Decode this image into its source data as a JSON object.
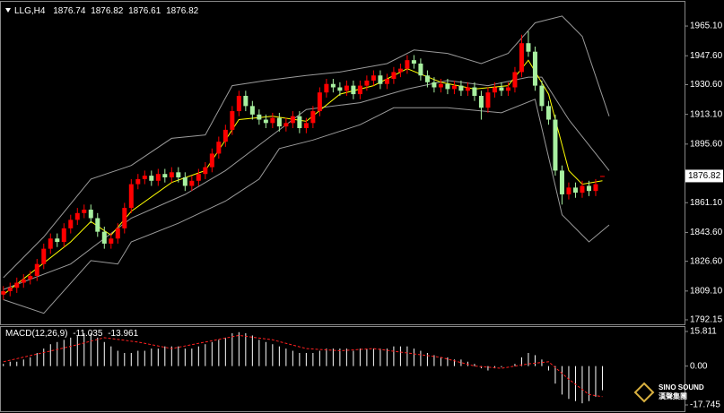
{
  "chart_data": [
    {
      "type": "candlestick",
      "title": "LLG,H4",
      "open": [
        1807,
        1809,
        1811,
        1814,
        1816,
        1818,
        1825,
        1834,
        1840,
        1838,
        1846,
        1851,
        1855,
        1857,
        1852,
        1844,
        1837,
        1840,
        1846,
        1858,
        1872,
        1875,
        1877,
        1874,
        1878,
        1876,
        1879,
        1876,
        1871,
        1874,
        1878,
        1882,
        1890,
        1897,
        1904,
        1915,
        1924,
        1918,
        1913,
        1910,
        1908,
        1911,
        1906,
        1908,
        1912,
        1905,
        1908,
        1915,
        1926,
        1931,
        1929,
        1927,
        1930,
        1925,
        1930,
        1933,
        1936,
        1931,
        1934,
        1938,
        1940,
        1945,
        1943,
        1936,
        1932,
        1929,
        1931,
        1928,
        1930,
        1927,
        1929,
        1924,
        1917,
        1926,
        1929,
        1927,
        1929,
        1938,
        1955,
        1950,
        1930,
        1918,
        1910,
        1880,
        1866,
        1870,
        1867,
        1871,
        1868,
        1876.74
      ],
      "high": [
        1812,
        1814,
        1817,
        1819,
        1821,
        1828,
        1837,
        1843,
        1843,
        1849,
        1854,
        1858,
        1860,
        1860,
        1855,
        1847,
        1843,
        1849,
        1861,
        1875,
        1878,
        1880,
        1880,
        1881,
        1881,
        1882,
        1882,
        1879,
        1877,
        1881,
        1885,
        1893,
        1900,
        1907,
        1918,
        1927,
        1927,
        1921,
        1916,
        1913,
        1914,
        1914,
        1911,
        1915,
        1915,
        1911,
        1918,
        1929,
        1934,
        1934,
        1932,
        1933,
        1933,
        1933,
        1936,
        1939,
        1939,
        1937,
        1941,
        1943,
        1948,
        1948,
        1946,
        1939,
        1935,
        1934,
        1934,
        1933,
        1933,
        1932,
        1932,
        1927,
        1929,
        1932,
        1932,
        1932,
        1941,
        1960,
        1962,
        1953,
        1933,
        1921,
        1913,
        1883,
        1873,
        1873,
        1874,
        1874,
        1875,
        1876.82
      ],
      "low": [
        1804,
        1806,
        1808,
        1811,
        1813,
        1815,
        1822,
        1831,
        1835,
        1835,
        1843,
        1848,
        1852,
        1849,
        1841,
        1834,
        1834,
        1837,
        1843,
        1855,
        1869,
        1872,
        1871,
        1871,
        1873,
        1873,
        1873,
        1868,
        1868,
        1871,
        1875,
        1879,
        1887,
        1894,
        1901,
        1912,
        1915,
        1910,
        1907,
        1905,
        1905,
        1903,
        1903,
        1905,
        1902,
        1902,
        1905,
        1912,
        1923,
        1926,
        1924,
        1924,
        1922,
        1922,
        1927,
        1930,
        1928,
        1928,
        1931,
        1935,
        1937,
        1940,
        1933,
        1929,
        1926,
        1926,
        1925,
        1925,
        1924,
        1924,
        1921,
        1910,
        1914,
        1923,
        1924,
        1924,
        1926,
        1935,
        1947,
        1927,
        1915,
        1907,
        1877,
        1860,
        1863,
        1864,
        1864,
        1865,
        1865,
        1876.61
      ],
      "close": [
        1809,
        1811,
        1814,
        1816,
        1818,
        1825,
        1834,
        1840,
        1838,
        1846,
        1851,
        1855,
        1857,
        1852,
        1844,
        1837,
        1840,
        1846,
        1858,
        1872,
        1875,
        1877,
        1874,
        1878,
        1876,
        1879,
        1876,
        1871,
        1874,
        1878,
        1882,
        1890,
        1897,
        1904,
        1915,
        1924,
        1918,
        1913,
        1910,
        1908,
        1911,
        1906,
        1908,
        1912,
        1905,
        1908,
        1915,
        1926,
        1931,
        1929,
        1927,
        1930,
        1925,
        1930,
        1933,
        1936,
        1931,
        1934,
        1938,
        1940,
        1945,
        1943,
        1936,
        1932,
        1929,
        1931,
        1928,
        1930,
        1927,
        1929,
        1924,
        1917,
        1926,
        1929,
        1927,
        1929,
        1938,
        1955,
        1950,
        1930,
        1918,
        1910,
        1880,
        1866,
        1870,
        1867,
        1871,
        1868,
        1872,
        1876.82
      ],
      "up_color": "#ff0000",
      "down_color": "#a8f0a0",
      "lines": [
        {
          "color": "#9a9a9a",
          "x": [
            0,
            6,
            13,
            19,
            25,
            30,
            34,
            39,
            45,
            50,
            57,
            61,
            66,
            71,
            75,
            79,
            83,
            86,
            90
          ],
          "values": [
            1817,
            1841,
            1875,
            1883,
            1899,
            1901,
            1930,
            1933,
            1936,
            1938,
            1943,
            1951,
            1949,
            1943,
            1949,
            1967,
            1971,
            1959,
            1912
          ]
        },
        {
          "color": "#9a9a9a",
          "x": [
            0,
            10,
            19,
            27,
            33,
            38,
            45,
            53,
            60,
            66,
            72,
            78,
            80,
            84,
            90
          ],
          "values": [
            1810,
            1825,
            1852,
            1866,
            1880,
            1895,
            1916,
            1920,
            1928,
            1933,
            1930,
            1935,
            1935,
            1910,
            1880
          ]
        },
        {
          "color": "#9a9a9a",
          "x": [
            0,
            6,
            13,
            17,
            19,
            26,
            33,
            38,
            41,
            46,
            53,
            58,
            66,
            74,
            79,
            83,
            87,
            90
          ],
          "values": [
            1804,
            1796,
            1827,
            1825,
            1838,
            1849,
            1862,
            1875,
            1893,
            1898,
            1907,
            1917,
            1917,
            1914,
            1922,
            1854,
            1838,
            1848
          ]
        },
        {
          "color": "#ffff00",
          "x": [
            0,
            10,
            13,
            16,
            19,
            25,
            30,
            35,
            40,
            45,
            50,
            55,
            60,
            65,
            70,
            75,
            78,
            81,
            84,
            86,
            89
          ],
          "values": [
            1807,
            1838,
            1850,
            1842,
            1856,
            1873,
            1880,
            1910,
            1912,
            1909,
            1925,
            1930,
            1940,
            1932,
            1928,
            1930,
            1945,
            1925,
            1880,
            1872,
            1874
          ]
        }
      ],
      "last_price": 1876.82,
      "xlim": [
        -0.5,
        101.2
      ],
      "ylim": [
        1789.5,
        1979.9
      ],
      "yticks": [
        {
          "value": 1965.1,
          "label": "1965.10"
        },
        {
          "value": 1947.6,
          "label": "1947.60"
        },
        {
          "value": 1930.6,
          "label": "1930.60"
        },
        {
          "value": 1913.1,
          "label": "1913.10"
        },
        {
          "value": 1895.6,
          "label": "1895.60"
        },
        {
          "value": 1861.1,
          "label": "1861.10"
        },
        {
          "value": 1843.6,
          "label": "1843.60"
        },
        {
          "value": 1826.6,
          "label": "1826.60"
        },
        {
          "value": 1809.1,
          "label": "1809.10"
        },
        1792.15
      ]
    },
    {
      "type": "macd",
      "title": "MACD(12,26,9)",
      "values": [
        1,
        2,
        2,
        3,
        4,
        6,
        8,
        10,
        11,
        12,
        13,
        14,
        15,
        15,
        13,
        11,
        9,
        7,
        6,
        6,
        7,
        7,
        8,
        8,
        9,
        9,
        9,
        8,
        8,
        9,
        10,
        11,
        12,
        13,
        15,
        15.5,
        15,
        14,
        12,
        11,
        10,
        9,
        8,
        7,
        6,
        6,
        6,
        7,
        8,
        8,
        8,
        8,
        7,
        8,
        8,
        8,
        8,
        8,
        9,
        9,
        9,
        8,
        7,
        6,
        5,
        4,
        4,
        3,
        3,
        2,
        1,
        -1,
        -2,
        -1,
        -0.5,
        0,
        1,
        4,
        6,
        5,
        3,
        -2,
        -8,
        -13,
        -15,
        -16,
        -17,
        -16,
        -14,
        -11.035
      ],
      "bar_color": "#ffffff",
      "signal": {
        "color": "#ff2020",
        "x": [
          0,
          10,
          15,
          20,
          25,
          30,
          35,
          40,
          45,
          50,
          55,
          60,
          65,
          70,
          74,
          78,
          81,
          84,
          87,
          89
        ],
        "values": [
          2,
          9,
          13,
          11,
          8,
          11,
          14,
          12,
          8,
          7,
          8,
          6,
          4,
          0,
          -1,
          1,
          2,
          -6,
          -13,
          -13.961
        ]
      },
      "xlim": [
        -0.5,
        101.2
      ],
      "ylim": [
        -21.43,
        18.27
      ],
      "yticks": [
        15.811,
        {
          "value": 0,
          "label": "0.00"
        },
        -17.745
      ]
    }
  ],
  "logo": {
    "name": "SINO SOUND",
    "subtitle": "漢聲集團"
  }
}
